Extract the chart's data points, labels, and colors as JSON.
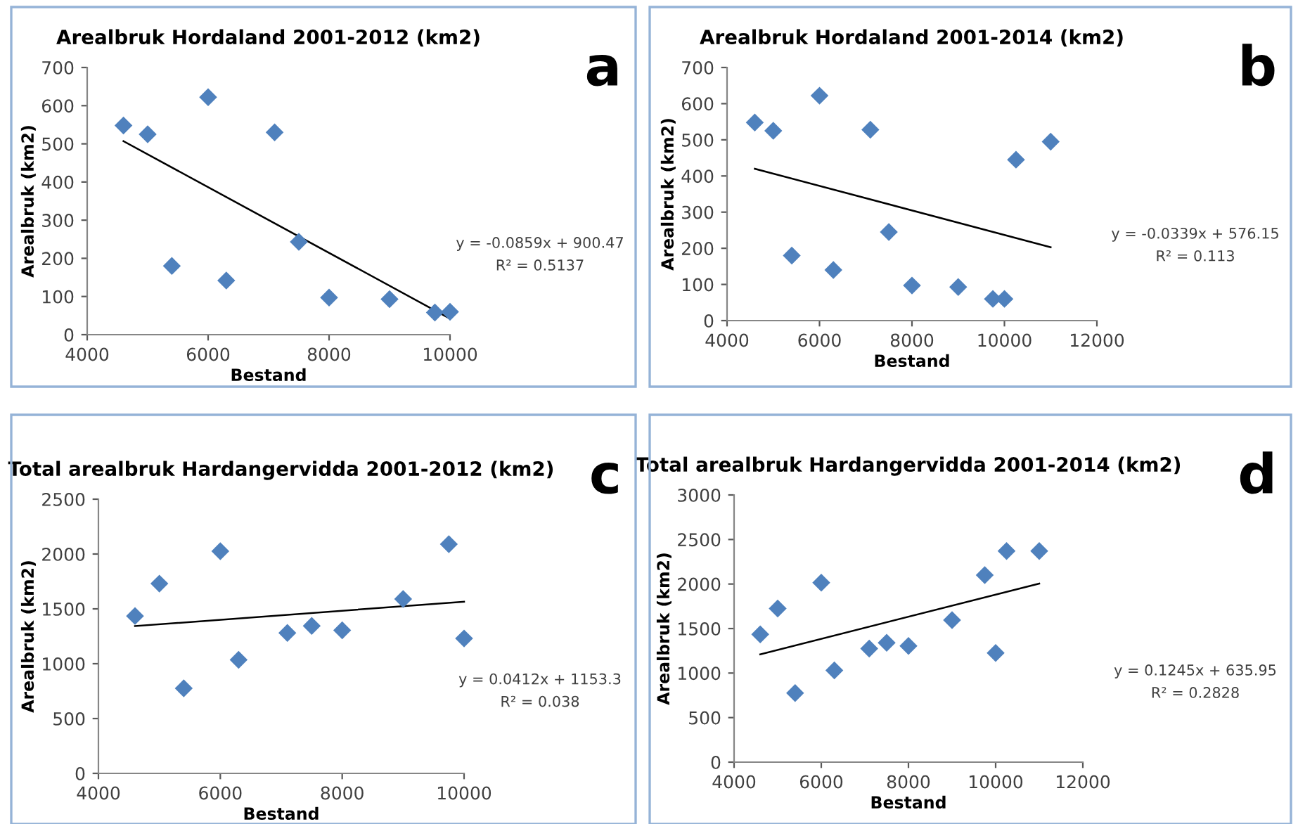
{
  "chart_data": [
    {
      "type": "scatter",
      "title": "Arealbruk Hordaland 2001-2012 (km2)",
      "xlabel": "Bestand",
      "ylabel": "Arealbruk (km2)",
      "xlim": [
        4000,
        10000
      ],
      "xticks": [
        4000,
        6000,
        8000,
        10000
      ],
      "ylim": [
        0,
        700
      ],
      "yticks": [
        0,
        100,
        200,
        300,
        400,
        500,
        600,
        700
      ],
      "series": [
        {
          "type": "scatter",
          "marker": "diamond",
          "color": "#4f81bd",
          "x": [
            4600,
            5000,
            5400,
            6000,
            6300,
            7100,
            7500,
            8000,
            9000,
            9750,
            10000
          ],
          "values": [
            548,
            525,
            180,
            622,
            142,
            530,
            243,
            97,
            93,
            58,
            60
          ]
        },
        {
          "type": "line",
          "color": "#000000",
          "x": [
            4600,
            10000
          ],
          "values": [
            507,
            42
          ]
        }
      ],
      "annotations": [
        "a",
        "y = -0.0859x + 900.47",
        "R² = 0.5137"
      ]
    },
    {
      "type": "scatter",
      "title": "Arealbruk Hordaland 2001-2014 (km2)",
      "xlabel": "Bestand",
      "ylabel": "Arealbruk (km2)",
      "xlim": [
        4000,
        12000
      ],
      "xticks": [
        4000,
        6000,
        8000,
        10000,
        12000
      ],
      "ylim": [
        0,
        700
      ],
      "yticks": [
        0,
        100,
        200,
        300,
        400,
        500,
        600,
        700
      ],
      "series": [
        {
          "type": "scatter",
          "marker": "diamond",
          "color": "#4f81bd",
          "x": [
            4600,
            5000,
            5400,
            6000,
            6300,
            7100,
            7500,
            8000,
            9000,
            9750,
            10000,
            10250,
            11000
          ],
          "values": [
            548,
            525,
            180,
            622,
            140,
            528,
            245,
            97,
            93,
            60,
            60,
            445,
            495
          ]
        },
        {
          "type": "line",
          "color": "#000000",
          "x": [
            4600,
            11000
          ],
          "values": [
            420,
            203
          ]
        }
      ],
      "annotations": [
        "b",
        "y = -0.0339x + 576.15",
        "R² = 0.113"
      ]
    },
    {
      "type": "scatter",
      "title": "Total arealbruk Hardangervidda 2001-2012 (km2)",
      "xlabel": "Bestand",
      "ylabel": "Arealbruk (km2)",
      "xlim": [
        4000,
        10000
      ],
      "xticks": [
        4000,
        6000,
        8000,
        10000
      ],
      "ylim": [
        0,
        2500
      ],
      "yticks": [
        0,
        500,
        1000,
        1500,
        2000,
        2500
      ],
      "series": [
        {
          "type": "scatter",
          "marker": "diamond",
          "color": "#4f81bd",
          "x": [
            4600,
            5000,
            5400,
            6000,
            6300,
            7100,
            7500,
            8000,
            9000,
            9750,
            10000
          ],
          "values": [
            1435,
            1730,
            775,
            2025,
            1035,
            1280,
            1345,
            1305,
            1590,
            2090,
            1230
          ]
        },
        {
          "type": "line",
          "color": "#000000",
          "x": [
            4600,
            10000
          ],
          "values": [
            1343,
            1565
          ]
        }
      ],
      "annotations": [
        "c",
        "y = 0.0412x + 1153.3",
        "R² = 0.038"
      ]
    },
    {
      "type": "scatter",
      "title": "Total arealbruk Hardangervidda 2001-2014 (km2)",
      "xlabel": "Bestand",
      "ylabel": "Arealbruk (km2)",
      "xlim": [
        4000,
        12000
      ],
      "xticks": [
        4000,
        6000,
        8000,
        10000,
        12000
      ],
      "ylim": [
        0,
        3000
      ],
      "yticks": [
        0,
        500,
        1000,
        1500,
        2000,
        2500,
        3000
      ],
      "series": [
        {
          "type": "scatter",
          "marker": "diamond",
          "color": "#4f81bd",
          "x": [
            4600,
            5000,
            5400,
            6000,
            6300,
            7100,
            7500,
            8000,
            9000,
            9750,
            10000,
            10250,
            11000
          ],
          "values": [
            1435,
            1725,
            775,
            2015,
            1030,
            1275,
            1340,
            1305,
            1595,
            2100,
            1225,
            2370,
            2370
          ]
        },
        {
          "type": "line",
          "color": "#000000",
          "x": [
            4600,
            11000
          ],
          "values": [
            1210,
            2005
          ]
        }
      ],
      "annotations": [
        "d",
        "y = 0.1245x + 635.95",
        "R² = 0.2828"
      ]
    }
  ]
}
